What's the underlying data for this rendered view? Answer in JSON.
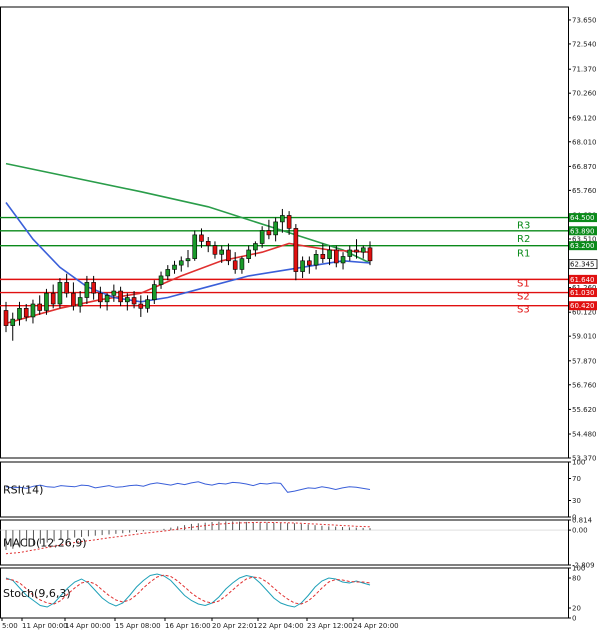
{
  "chart_data": {
    "type": "candlestick",
    "price_axis": {
      "ticks": [
        "73.650",
        "72.540",
        "71.370",
        "70.260",
        "69.120",
        "68.010",
        "66.870",
        "65.760",
        "64.620",
        "63.510",
        "62.370",
        "61.260",
        "60.120",
        "59.010",
        "57.870",
        "56.760",
        "55.620",
        "54.480",
        "53.370"
      ],
      "range": [
        53.37,
        74.25
      ]
    },
    "time_axis": {
      "labels": [
        "5:00",
        "11 Apr 00:00",
        "14 Apr 00:00",
        "15 Apr 08:00",
        "16 Apr 16:00",
        "20 Apr 22:01",
        "22 Apr 04:00",
        "23 Apr 12:00",
        "24 Apr 20:00"
      ]
    },
    "current_price": "62.345",
    "levels": [
      {
        "name": "R3",
        "value": 64.5,
        "label": "64.500",
        "kind": "resistance"
      },
      {
        "name": "R2",
        "value": 63.89,
        "label": "63.890",
        "kind": "resistance"
      },
      {
        "name": "R1",
        "value": 63.2,
        "label": "63.200",
        "kind": "resistance"
      },
      {
        "name": "S1",
        "value": 61.64,
        "label": "61.640",
        "kind": "support"
      },
      {
        "name": "S2",
        "value": 61.03,
        "label": "61.030",
        "kind": "support"
      },
      {
        "name": "S3",
        "value": 60.42,
        "label": "60.420",
        "kind": "support"
      }
    ],
    "candles": [
      [
        60.2,
        60.6,
        59.2,
        59.5
      ],
      [
        59.5,
        60.1,
        58.8,
        59.8
      ],
      [
        59.8,
        60.6,
        59.5,
        60.3
      ],
      [
        60.3,
        60.5,
        59.7,
        59.9
      ],
      [
        59.9,
        60.7,
        59.6,
        60.5
      ],
      [
        60.5,
        60.9,
        60.0,
        60.2
      ],
      [
        60.2,
        61.2,
        60.0,
        61.0
      ],
      [
        61.0,
        61.4,
        60.3,
        60.5
      ],
      [
        60.5,
        61.7,
        60.3,
        61.5
      ],
      [
        61.5,
        61.9,
        60.8,
        61.0
      ],
      [
        61.0,
        61.5,
        60.2,
        60.4
      ],
      [
        60.4,
        61.1,
        60.1,
        60.8
      ],
      [
        60.8,
        61.8,
        60.5,
        61.5
      ],
      [
        61.5,
        61.8,
        60.7,
        61.0
      ],
      [
        61.0,
        61.3,
        60.3,
        60.6
      ],
      [
        60.6,
        61.0,
        60.2,
        60.9
      ],
      [
        60.9,
        61.4,
        60.6,
        61.1
      ],
      [
        61.1,
        61.3,
        60.4,
        60.6
      ],
      [
        60.6,
        61.0,
        60.2,
        60.8
      ],
      [
        60.8,
        61.1,
        60.3,
        60.5
      ],
      [
        60.5,
        60.9,
        59.9,
        60.3
      ],
      [
        60.3,
        60.9,
        60.1,
        60.7
      ],
      [
        60.7,
        61.6,
        60.5,
        61.4
      ],
      [
        61.4,
        62.0,
        61.2,
        61.8
      ],
      [
        61.8,
        62.3,
        61.6,
        62.1
      ],
      [
        62.1,
        62.5,
        61.9,
        62.3
      ],
      [
        62.3,
        62.7,
        62.0,
        62.5
      ],
      [
        62.5,
        63.0,
        62.2,
        62.6
      ],
      [
        62.6,
        63.9,
        62.5,
        63.7
      ],
      [
        63.7,
        64.0,
        63.1,
        63.4
      ],
      [
        63.4,
        63.6,
        62.9,
        63.2
      ],
      [
        63.2,
        63.4,
        62.6,
        62.8
      ],
      [
        62.8,
        63.2,
        62.4,
        63.0
      ],
      [
        63.0,
        63.3,
        62.3,
        62.5
      ],
      [
        62.5,
        62.9,
        61.9,
        62.1
      ],
      [
        62.1,
        62.7,
        61.9,
        62.6
      ],
      [
        62.6,
        63.2,
        62.4,
        63.0
      ],
      [
        63.0,
        63.4,
        62.7,
        63.3
      ],
      [
        63.3,
        64.1,
        63.1,
        63.9
      ],
      [
        63.9,
        64.4,
        63.5,
        63.7
      ],
      [
        63.7,
        64.5,
        63.4,
        64.3
      ],
      [
        64.3,
        64.9,
        63.8,
        64.6
      ],
      [
        64.6,
        64.8,
        63.7,
        64.0
      ],
      [
        64.0,
        64.2,
        61.6,
        62.0
      ],
      [
        62.0,
        62.7,
        61.7,
        62.5
      ],
      [
        62.5,
        62.7,
        61.9,
        62.3
      ],
      [
        62.3,
        63.0,
        62.1,
        62.8
      ],
      [
        62.8,
        63.3,
        62.4,
        62.6
      ],
      [
        62.6,
        63.2,
        62.3,
        63.0
      ],
      [
        63.0,
        63.2,
        62.2,
        62.4
      ],
      [
        62.4,
        62.9,
        62.1,
        62.7
      ],
      [
        62.7,
        63.2,
        62.5,
        63.0
      ],
      [
        63.0,
        63.5,
        62.6,
        62.9
      ],
      [
        62.9,
        63.2,
        62.6,
        63.1
      ],
      [
        63.1,
        63.4,
        62.3,
        62.5
      ]
    ],
    "moving_averages": [
      {
        "color": "#2a9d4a",
        "points": [
          [
            0,
            67.0
          ],
          [
            20,
            65.7
          ],
          [
            30,
            65.0
          ],
          [
            40,
            64.0
          ],
          [
            46,
            63.4
          ],
          [
            50,
            63.0
          ],
          [
            54,
            62.4
          ]
        ]
      },
      {
        "color": "#e03030",
        "points": [
          [
            0,
            59.6
          ],
          [
            8,
            60.3
          ],
          [
            14,
            60.7
          ],
          [
            20,
            61.0
          ],
          [
            26,
            61.8
          ],
          [
            32,
            62.5
          ],
          [
            38,
            62.9
          ],
          [
            42,
            63.3
          ],
          [
            44,
            63.2
          ],
          [
            48,
            63.0
          ],
          [
            54,
            62.9
          ]
        ]
      },
      {
        "color": "#3a5fd9",
        "points": [
          [
            0,
            65.2
          ],
          [
            4,
            63.5
          ],
          [
            8,
            62.2
          ],
          [
            12,
            61.3
          ],
          [
            16,
            60.8
          ],
          [
            20,
            60.6
          ],
          [
            24,
            60.8
          ],
          [
            30,
            61.3
          ],
          [
            36,
            61.8
          ],
          [
            42,
            62.1
          ],
          [
            46,
            62.3
          ],
          [
            50,
            62.5
          ],
          [
            54,
            62.4
          ]
        ]
      }
    ],
    "indicators": [
      {
        "name": "RSI(14)",
        "ticks": [
          "100",
          "70",
          "30",
          "0"
        ],
        "range": [
          0,
          100
        ],
        "series": [
          {
            "color": "#3a5fd9",
            "style": "solid",
            "values": [
              55,
              53,
              54,
              52,
              56,
              58,
              55,
              54,
              57,
              56,
              55,
              58,
              57,
              53,
              55,
              57,
              54,
              55,
              57,
              58,
              56,
              60,
              62,
              60,
              58,
              61,
              59,
              62,
              64,
              60,
              58,
              61,
              60,
              63,
              62,
              60,
              57,
              61,
              60,
              62,
              61,
              45,
              47,
              50,
              53,
              52,
              55,
              53,
              50,
              53,
              55,
              54,
              52,
              50
            ]
          }
        ]
      },
      {
        "name": "MACD(12,26,9)",
        "ticks": [
          "0.814",
          "0.00",
          "-2.809"
        ],
        "range": [
          -2.809,
          0.814
        ],
        "series": [
          {
            "color": "#555555",
            "style": "histogram",
            "values": [
              -1.6,
              -1.5,
              -1.4,
              -1.3,
              -1.2,
              -1.1,
              -1.0,
              -0.9,
              -0.8,
              -0.7,
              -0.6,
              -0.55,
              -0.5,
              -0.45,
              -0.4,
              -0.35,
              -0.3,
              -0.25,
              -0.2,
              -0.15,
              -0.1,
              -0.05,
              0.0,
              0.1,
              0.2,
              0.3,
              0.4,
              0.5,
              0.55,
              0.6,
              0.65,
              0.68,
              0.7,
              0.7,
              0.68,
              0.66,
              0.65,
              0.64,
              0.62,
              0.6,
              0.58,
              0.56,
              0.55,
              0.5,
              0.45,
              0.4,
              0.35,
              0.3,
              0.28,
              0.25,
              0.22,
              0.2,
              0.18,
              0.16
            ]
          },
          {
            "color": "#e03030",
            "style": "dotted",
            "values": [
              -1.9,
              -1.85,
              -1.8,
              -1.7,
              -1.6,
              -1.5,
              -1.4,
              -1.3,
              -1.2,
              -1.1,
              -1.0,
              -0.92,
              -0.85,
              -0.78,
              -0.7,
              -0.62,
              -0.55,
              -0.48,
              -0.4,
              -0.33,
              -0.26,
              -0.2,
              -0.14,
              -0.08,
              0.0,
              0.08,
              0.15,
              0.22,
              0.3,
              0.36,
              0.42,
              0.48,
              0.52,
              0.56,
              0.58,
              0.6,
              0.61,
              0.62,
              0.62,
              0.61,
              0.6,
              0.59,
              0.57,
              0.55,
              0.52,
              0.49,
              0.46,
              0.43,
              0.4,
              0.37,
              0.34,
              0.31,
              0.29,
              0.27
            ]
          }
        ]
      },
      {
        "name": "Stoch(9,6,3)",
        "ticks": [
          "100",
          "80",
          "20",
          "0"
        ],
        "range": [
          0,
          100
        ],
        "series": [
          {
            "color": "#1fa0b8",
            "style": "solid",
            "values": [
              80,
              75,
              60,
              45,
              35,
              25,
              22,
              30,
              45,
              60,
              72,
              78,
              70,
              55,
              40,
              30,
              24,
              30,
              45,
              62,
              75,
              85,
              88,
              84,
              75,
              60,
              45,
              35,
              28,
              25,
              30,
              42,
              58,
              70,
              80,
              85,
              82,
              70,
              55,
              40,
              30,
              25,
              22,
              30,
              45,
              62,
              74,
              80,
              78,
              72,
              70,
              74,
              70,
              66
            ]
          },
          {
            "color": "#e03030",
            "style": "dashed",
            "values": [
              78,
              76,
              70,
              58,
              45,
              36,
              30,
              28,
              35,
              48,
              60,
              70,
              73,
              68,
              56,
              45,
              36,
              32,
              36,
              46,
              60,
              72,
              82,
              86,
              83,
              74,
              62,
              50,
              40,
              33,
              30,
              34,
              44,
              56,
              68,
              78,
              82,
              80,
              72,
              60,
              48,
              38,
              30,
              28,
              34,
              46,
              60,
              72,
              77,
              76,
              73,
              72,
              72,
              70
            ]
          }
        ]
      }
    ]
  }
}
